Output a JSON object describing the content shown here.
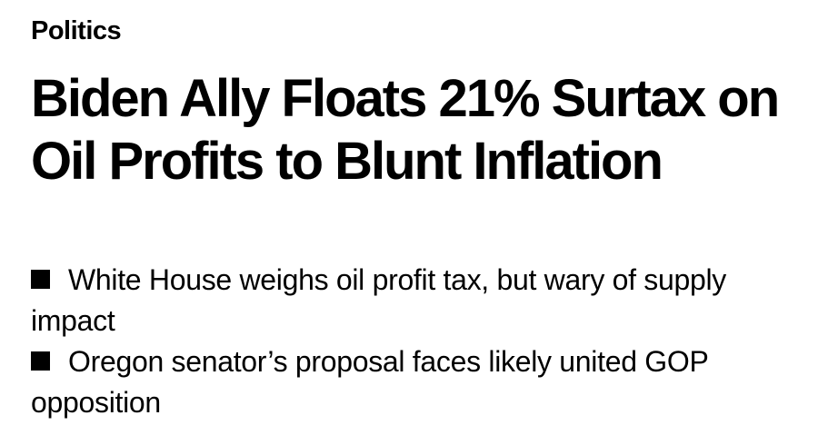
{
  "section": {
    "label": "Politics"
  },
  "headline": {
    "text": "Biden Ally Floats 21% Surtax on Oil Profits to Blunt Inflation"
  },
  "bullets": [
    {
      "text": "White House weighs oil profit tax, but wary of supply impact"
    },
    {
      "text": "Oregon senator’s proposal faces likely united GOP opposition"
    }
  ]
}
